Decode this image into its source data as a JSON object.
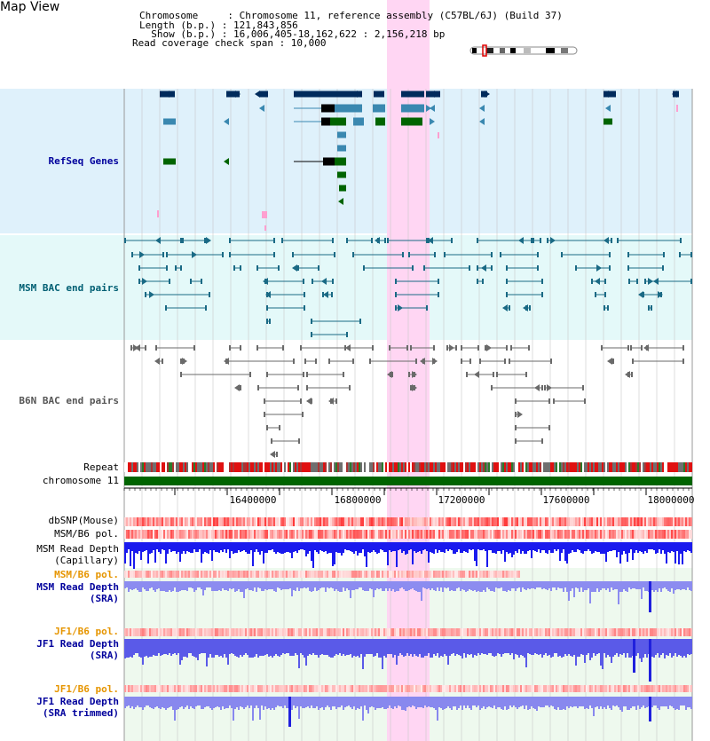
{
  "title": "Map View",
  "info": {
    "line1": "Chromosome     : Chromosome 11, reference assembly (C57BL/6J) (Build 37)",
    "line2": "Length (b.p.) : 121,843,856",
    "line3": "  Show (b.p.) : 16,006,405-18,162,622 : 2,156,218 bp",
    "line4": "Read coverage check span : 10,000"
  },
  "tracks": {
    "refseq": "RefSeq Genes",
    "msm_bac": "MSM BAC end pairs",
    "b6n_bac": "B6N BAC end pairs",
    "repeat": "Repeat",
    "chromosome": "chromosome 11",
    "dbsnp": "dbSNP(Mouse)",
    "msm_b6_pol": "MSM/B6 pol.",
    "msm_rd_cap_1": "MSM Read Depth",
    "msm_rd_cap_2": "(Capillary)",
    "msm_b6_pol_sra": "MSM/B6 pol.",
    "msm_rd_sra_1": "MSM Read Depth",
    "msm_rd_sra_2": "(SRA)",
    "jf1_b6_pol": "JF1/B6 pol.",
    "jf1_rd_sra_1": "JF1 Read Depth",
    "jf1_rd_sra_2": "(SRA)",
    "jf1_b6_pol_t": "JF1/B6 pol.",
    "jf1_rd_trim_1": "JF1 Read Depth",
    "jf1_rd_trim_2": "(SRA trimmed)"
  },
  "axis": {
    "ticks": [
      "16400000",
      "16800000",
      "17200000",
      "17600000",
      "18000000"
    ]
  },
  "colors": {
    "refseq_bg": "#dff1fb",
    "bac_bg": "#e4f9f9",
    "highlight": "#ffd6f3",
    "gene_dark": "#002b5c",
    "gene_mid": "#3a88b0",
    "gene_green": "#006400",
    "chrom": "#006400",
    "depth": "#2222dd"
  }
}
